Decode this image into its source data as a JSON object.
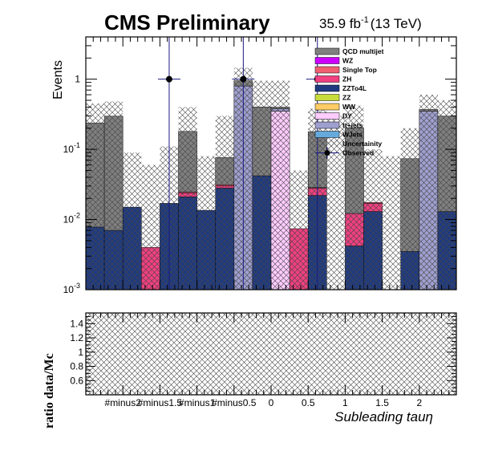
{
  "header": {
    "cms_label": "CMS Preliminary",
    "lumi_label": "35.9 fb",
    "lumi_exp": "-1",
    "energy_label": "(13 TeV)"
  },
  "colors": {
    "qcd": "#7f7f7f",
    "wz": "#cc00ff",
    "single_top": "#f06070",
    "zh": "#f04080",
    "zzto4l": "#1f3a80",
    "zz": "#c8dc3c",
    "ww": "#ffcc66",
    "dy": "#ffccff",
    "ttjets": "#9f9fcf",
    "wjets": "#66aadd",
    "observed": "#000000"
  },
  "chart_data": {
    "type": "bar",
    "top_panel": {
      "ylabel": "Events",
      "yscale": "log",
      "ylim": [
        0.001,
        4.0
      ],
      "y_ticks": [
        {
          "value": 0.001,
          "label_base": "10",
          "label_exp": "-3"
        },
        {
          "value": 0.01,
          "label_base": "10",
          "label_exp": "-2"
        },
        {
          "value": 0.1,
          "label_base": "10",
          "label_exp": "-1"
        },
        {
          "value": 1,
          "label_base": "1",
          "label_exp": ""
        }
      ],
      "x_edges": [
        -2.5,
        -2.25,
        -2.0,
        -1.75,
        -1.5,
        -1.25,
        -1.0,
        -0.75,
        -0.5,
        -0.25,
        0.0,
        0.25,
        0.5,
        0.75,
        1.0,
        1.25,
        1.5,
        1.75,
        2.0,
        2.25,
        2.5
      ],
      "stacked_series": [
        {
          "name": "ZZTo4L",
          "key": "zzto4l",
          "values": [
            0.0078,
            0.007,
            0.015,
            0,
            0.017,
            0.021,
            0.0135,
            0.028,
            0,
            0.042,
            0,
            0,
            0.022,
            0,
            0.0042,
            0.013,
            0,
            0.0035,
            0,
            0.013
          ]
        },
        {
          "name": "ZH",
          "key": "zh",
          "values": [
            0,
            0,
            0,
            0.004,
            0,
            0.003,
            0,
            0.0025,
            0,
            0,
            0,
            0.0074,
            0.006,
            0,
            0.008,
            0.004,
            0,
            0,
            0,
            0
          ]
        },
        {
          "name": "Single Top",
          "key": "single_top",
          "values": [
            0,
            0,
            0,
            0,
            0,
            0.0008,
            0,
            0.0008,
            0,
            0,
            0,
            0,
            0.0005,
            0,
            0,
            0.0005,
            0,
            0,
            0,
            0
          ]
        },
        {
          "name": "DY",
          "key": "dy",
          "values": [
            0,
            0,
            0,
            0,
            0,
            0,
            0,
            0,
            0,
            0,
            0.35,
            0,
            0,
            0,
            0,
            0,
            0,
            0,
            0,
            0
          ]
        },
        {
          "name": "tt+jets",
          "key": "ttjets",
          "values": [
            0,
            0,
            0,
            0,
            0,
            0,
            0,
            0,
            0.8,
            0,
            0.03,
            0,
            0,
            0,
            0,
            0,
            0,
            0,
            0.35,
            0
          ]
        },
        {
          "name": "QCD multijet",
          "key": "qcd",
          "values": [
            0.23,
            0.29,
            0,
            0,
            0,
            0.155,
            0,
            0.045,
            0.15,
            0.36,
            0.02,
            0,
            0.15,
            0,
            0.19,
            0,
            0,
            0.07,
            0.02,
            0.285
          ]
        }
      ],
      "totals": [
        0.238,
        0.297,
        0.015,
        0.004,
        0.017,
        0.18,
        0.0135,
        0.077,
        0.95,
        0.402,
        0.4,
        0.0074,
        0.179,
        0,
        0.202,
        0.0175,
        0,
        0.0735,
        0.37,
        0.298
      ],
      "uncertainty_up": [
        0.45,
        0.48,
        0.09,
        0.06,
        0.11,
        0.4,
        0.08,
        0.3,
        1.45,
        0.95,
        0.95,
        0.05,
        0.38,
        0.3,
        0.42,
        0.1,
        0.08,
        0.2,
        0.6,
        0.5
      ],
      "observed": [
        {
          "x": -1.375,
          "y": 1.0,
          "y_err_high": 4.0,
          "y_err_low": 0.001
        },
        {
          "x": -0.375,
          "y": 1.0,
          "y_err_high": 4.0,
          "y_err_low": 0.001
        },
        {
          "x": 0.625,
          "y": 1.0,
          "y_err_high": 4.0,
          "y_err_low": 0.001
        }
      ],
      "legend": {
        "placement": "top-right",
        "entries": [
          {
            "label": "QCD multijet",
            "key": "qcd",
            "style": "box"
          },
          {
            "label": "WZ",
            "key": "wz",
            "style": "box"
          },
          {
            "label": "Single Top",
            "key": "single_top",
            "style": "box"
          },
          {
            "label": "ZH",
            "key": "zh",
            "style": "box"
          },
          {
            "label": "ZZTo4L",
            "key": "zzto4l",
            "style": "box"
          },
          {
            "label": "ZZ",
            "key": "zz",
            "style": "box"
          },
          {
            "label": "WW",
            "key": "ww",
            "style": "box"
          },
          {
            "label": "DY",
            "key": "dy",
            "style": "box"
          },
          {
            "label": "tt+jets",
            "key": "ttjets",
            "style": "box"
          },
          {
            "label": "WJets",
            "key": "wjets",
            "style": "box"
          },
          {
            "label": "Uncertainity",
            "key": "",
            "style": "hatch"
          },
          {
            "label": "Observed",
            "key": "observed",
            "style": "marker"
          }
        ]
      }
    },
    "ratio_panel": {
      "ylabel": "ratio data/Mc",
      "ylim": [
        0.4,
        1.55
      ],
      "y_ticks": [
        {
          "value": 0.6,
          "label": "0.6"
        },
        {
          "value": 0.8,
          "label": "0.8"
        },
        {
          "value": 1.0,
          "label": "1"
        },
        {
          "value": 1.2,
          "label": "1.2"
        },
        {
          "value": 1.4,
          "label": "1.4"
        }
      ],
      "band": [
        0.4,
        1.55
      ]
    },
    "x_axis": {
      "xlabel": "Subleading   tauη",
      "xlim": [
        -2.5,
        2.5
      ],
      "tick_labels": [
        {
          "value": -2.0,
          "label": "#minus2"
        },
        {
          "value": -1.5,
          "label": "#minus1.5"
        },
        {
          "value": -1.0,
          "label": "#minus1"
        },
        {
          "value": -0.5,
          "label": "#minus0.5"
        },
        {
          "value": 0.0,
          "label": "0"
        },
        {
          "value": 0.5,
          "label": "0.5"
        },
        {
          "value": 1.0,
          "label": "1"
        },
        {
          "value": 1.5,
          "label": "1.5"
        },
        {
          "value": 2.0,
          "label": "2"
        }
      ]
    }
  }
}
